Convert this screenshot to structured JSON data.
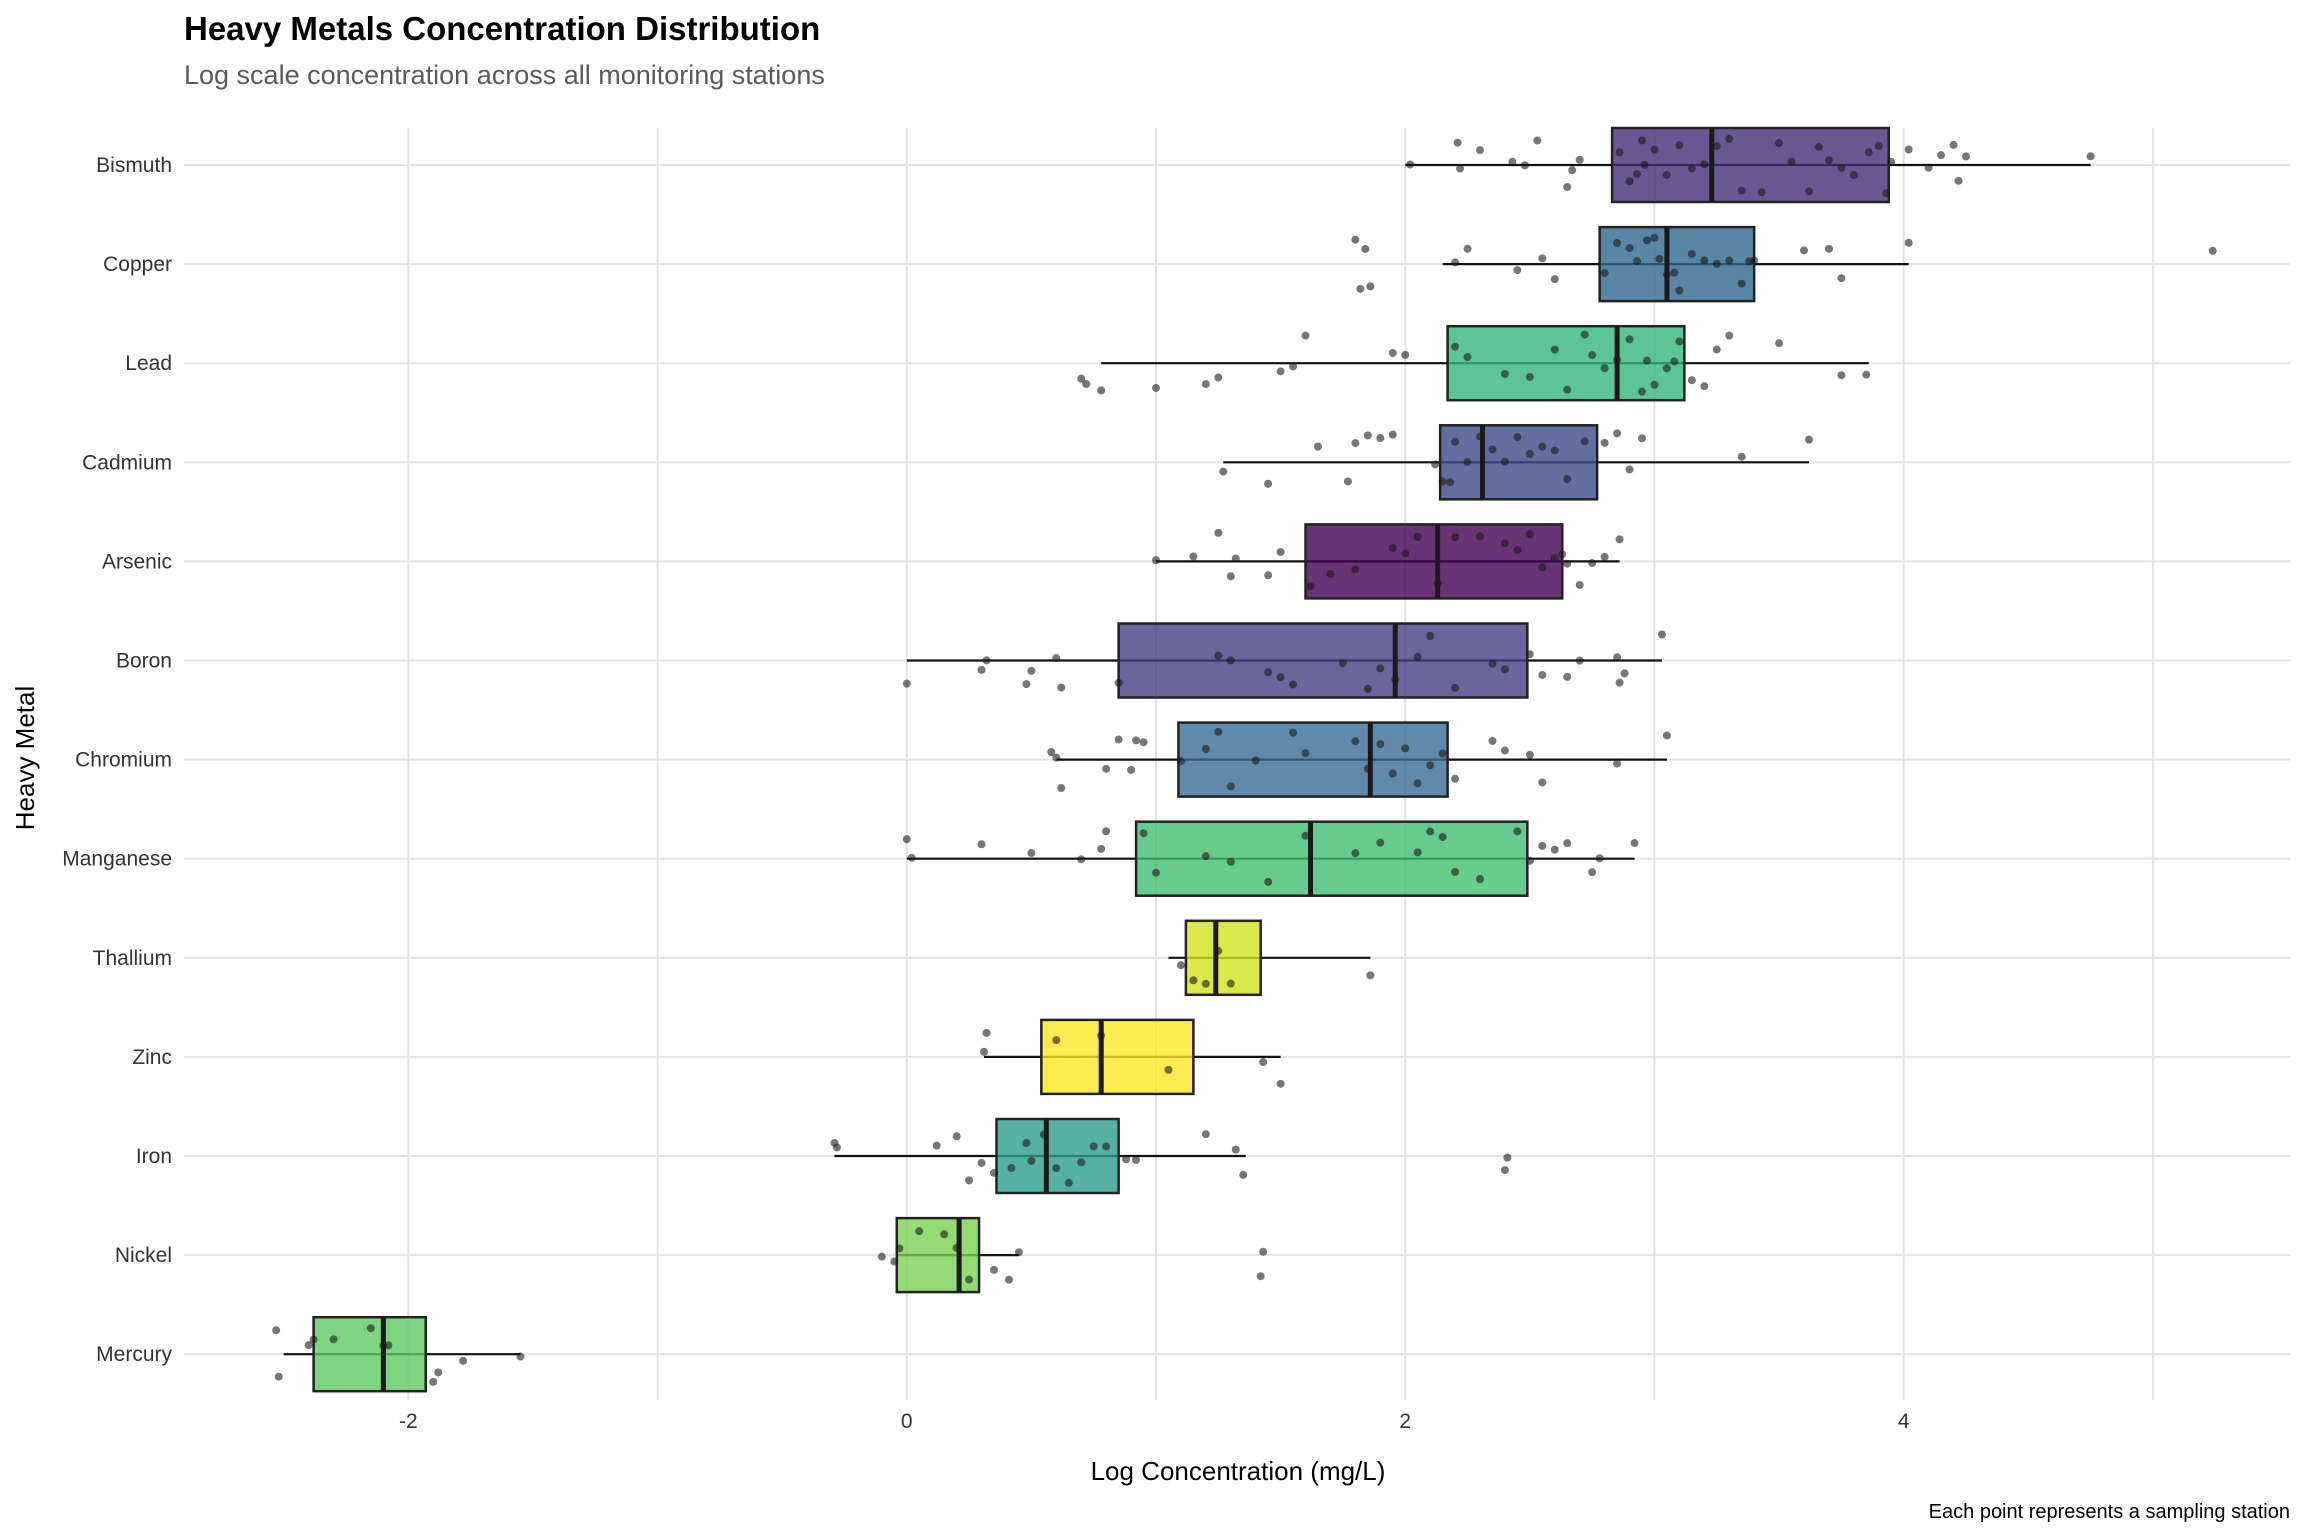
{
  "chart_data": {
    "type": "boxplot",
    "title": "Heavy Metals Concentration Distribution",
    "subtitle": "Log scale concentration across all monitoring stations",
    "xlabel": "Log\u0001\u0001 Concentration (mg/L)",
    "ylabel": "Heavy Metal",
    "caption": "Each point represents a sampling station",
    "xlim": [
      -2.9,
      5.55
    ],
    "x_ticks": [
      -2,
      0,
      2,
      4
    ],
    "grid": true,
    "legend": "none",
    "series": [
      {
        "category": "Bismuth",
        "color": "#472d7b",
        "q1": 2.83,
        "median": 3.23,
        "q3": 3.94,
        "whisker_low": 2.0,
        "whisker_high": 4.75,
        "points": [
          2.02,
          2.22,
          2.21,
          2.3,
          2.43,
          2.48,
          2.53,
          2.65,
          2.67,
          2.7,
          2.86,
          2.9,
          2.93,
          2.95,
          2.96,
          3.0,
          3.05,
          3.1,
          3.15,
          3.2,
          3.25,
          3.3,
          3.35,
          3.43,
          3.5,
          3.55,
          3.62,
          3.66,
          3.7,
          3.75,
          3.8,
          3.86,
          3.9,
          3.93,
          3.95,
          4.02,
          4.1,
          4.15,
          4.2,
          4.22,
          4.25,
          4.75
        ]
      },
      {
        "category": "Copper",
        "color": "#31688e",
        "q1": 2.78,
        "median": 3.05,
        "q3": 3.4,
        "whisker_low": 2.15,
        "whisker_high": 4.02,
        "points": [
          1.8,
          1.82,
          1.84,
          1.86,
          2.2,
          2.25,
          2.45,
          2.55,
          2.6,
          2.8,
          2.85,
          2.9,
          2.93,
          2.97,
          3.0,
          3.02,
          3.05,
          3.08,
          3.1,
          3.15,
          3.2,
          3.25,
          3.3,
          3.35,
          3.38,
          3.4,
          3.6,
          3.7,
          3.75,
          4.02,
          5.24
        ]
      },
      {
        "category": "Lead",
        "color": "#35b779",
        "q1": 2.17,
        "median": 2.85,
        "q3": 3.12,
        "whisker_low": 0.78,
        "whisker_high": 3.86,
        "points": [
          0.7,
          0.72,
          0.78,
          1.0,
          1.2,
          1.25,
          1.5,
          1.55,
          1.6,
          1.95,
          2.0,
          2.2,
          2.25,
          2.4,
          2.5,
          2.6,
          2.65,
          2.72,
          2.75,
          2.8,
          2.85,
          2.9,
          2.95,
          2.97,
          3.0,
          3.05,
          3.08,
          3.1,
          3.15,
          3.2,
          3.25,
          3.3,
          3.5,
          3.75,
          3.85
        ]
      },
      {
        "category": "Cadmium",
        "color": "#3e4a89",
        "q1": 2.14,
        "median": 2.31,
        "q3": 2.77,
        "whisker_low": 1.27,
        "whisker_high": 3.62,
        "points": [
          1.27,
          1.45,
          1.65,
          1.77,
          1.8,
          1.85,
          1.9,
          1.95,
          2.12,
          2.15,
          2.18,
          2.2,
          2.25,
          2.3,
          2.35,
          2.4,
          2.45,
          2.5,
          2.55,
          2.6,
          2.65,
          2.72,
          2.8,
          2.85,
          2.9,
          2.95,
          3.35,
          3.62
        ]
      },
      {
        "category": "Arsenic",
        "color": "#440154",
        "q1": 1.6,
        "median": 2.13,
        "q3": 2.63,
        "whisker_low": 1.0,
        "whisker_high": 2.86,
        "points": [
          1.0,
          1.15,
          1.25,
          1.3,
          1.32,
          1.45,
          1.5,
          1.62,
          1.7,
          1.8,
          1.95,
          2.0,
          2.05,
          2.13,
          2.2,
          2.3,
          2.4,
          2.45,
          2.5,
          2.55,
          2.6,
          2.63,
          2.65,
          2.7,
          2.75,
          2.8,
          2.86
        ]
      },
      {
        "category": "Boron",
        "color": "#433e85",
        "q1": 0.85,
        "median": 1.96,
        "q3": 2.49,
        "whisker_low": 0.0,
        "whisker_high": 3.03,
        "points": [
          0.0,
          0.3,
          0.32,
          0.48,
          0.5,
          0.6,
          0.62,
          0.85,
          1.25,
          1.3,
          1.45,
          1.5,
          1.55,
          1.75,
          1.85,
          1.9,
          1.96,
          2.05,
          2.1,
          2.2,
          2.35,
          2.4,
          2.5,
          2.55,
          2.65,
          2.7,
          2.85,
          2.86,
          2.88,
          3.03
        ]
      },
      {
        "category": "Chromium",
        "color": "#3b6b93",
        "q1": 1.09,
        "median": 1.86,
        "q3": 2.17,
        "whisker_low": 0.6,
        "whisker_high": 3.05,
        "points": [
          0.58,
          0.6,
          0.62,
          0.8,
          0.85,
          0.9,
          0.92,
          0.95,
          1.1,
          1.2,
          1.25,
          1.3,
          1.4,
          1.55,
          1.6,
          1.8,
          1.85,
          1.9,
          1.95,
          2.0,
          2.05,
          2.1,
          2.15,
          2.2,
          2.35,
          2.4,
          2.5,
          2.55,
          2.85,
          3.05
        ]
      },
      {
        "category": "Manganese",
        "color": "#42be71",
        "q1": 0.92,
        "median": 1.62,
        "q3": 2.49,
        "whisker_low": 0.0,
        "whisker_high": 2.92,
        "points": [
          0.0,
          0.02,
          0.3,
          0.5,
          0.7,
          0.78,
          0.8,
          0.95,
          1.0,
          1.2,
          1.3,
          1.45,
          1.6,
          1.8,
          1.9,
          2.05,
          2.1,
          2.15,
          2.2,
          2.3,
          2.45,
          2.5,
          2.55,
          2.6,
          2.65,
          2.75,
          2.78,
          2.92
        ]
      },
      {
        "category": "Thallium",
        "color": "#d2e21b",
        "q1": 1.12,
        "median": 1.24,
        "q3": 1.42,
        "whisker_low": 1.05,
        "whisker_high": 1.86,
        "points": [
          1.1,
          1.15,
          1.2,
          1.25,
          1.3,
          1.86
        ]
      },
      {
        "category": "Zinc",
        "color": "#fde725",
        "q1": 0.54,
        "median": 0.78,
        "q3": 1.15,
        "whisker_low": 0.31,
        "whisker_high": 1.5,
        "points": [
          0.31,
          0.32,
          0.6,
          0.78,
          1.05,
          1.43,
          1.5
        ]
      },
      {
        "category": "Iron",
        "color": "#2c9c8c",
        "q1": 0.36,
        "median": 0.56,
        "q3": 0.85,
        "whisker_low": -0.29,
        "whisker_high": 1.36,
        "points": [
          -0.29,
          -0.28,
          0.12,
          0.2,
          0.25,
          0.3,
          0.35,
          0.42,
          0.48,
          0.5,
          0.55,
          0.6,
          0.65,
          0.7,
          0.75,
          0.8,
          0.88,
          0.92,
          1.2,
          1.32,
          1.35,
          2.4,
          2.41
        ]
      },
      {
        "category": "Nickel",
        "color": "#7ad151",
        "q1": -0.04,
        "median": 0.21,
        "q3": 0.29,
        "whisker_low": -0.04,
        "whisker_high": 0.45,
        "points": [
          -0.1,
          -0.05,
          -0.03,
          0.05,
          0.15,
          0.2,
          0.25,
          0.35,
          0.41,
          0.45,
          1.42,
          1.43
        ]
      },
      {
        "category": "Mercury",
        "color": "#5ec962",
        "q1": -2.38,
        "median": -2.1,
        "q3": -1.93,
        "whisker_low": -2.5,
        "whisker_high": -1.55,
        "points": [
          -2.53,
          -2.52,
          -2.4,
          -2.38,
          -2.3,
          -2.15,
          -2.1,
          -2.08,
          -1.9,
          -1.88,
          -1.78,
          -1.55
        ]
      }
    ]
  }
}
